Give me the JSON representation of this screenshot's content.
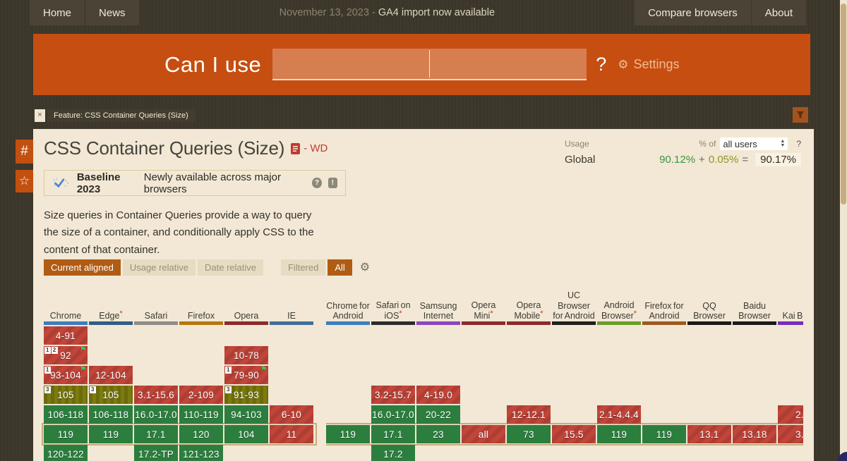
{
  "nav": {
    "left": [
      {
        "label": "Home"
      },
      {
        "label": "News"
      }
    ],
    "date_prefix": "November 13, 2023 - ",
    "announcement": "GA4 import now available",
    "right": [
      {
        "label": "Compare browsers"
      },
      {
        "label": "About"
      }
    ]
  },
  "header": {
    "logo": "Can I use",
    "question_mark": "?",
    "gear_icon": "⚙",
    "settings_label": "Settings",
    "accent_color": "#c54e10"
  },
  "feature_tag": {
    "close": "×",
    "label": "Feature: CSS Container Queries (Size)"
  },
  "side_buttons": {
    "hash": "#",
    "star": "☆"
  },
  "main": {
    "title": "CSS Container Queries (Size)",
    "spec_status": "- WD",
    "usage": {
      "label": "Usage",
      "percent_of": "% of",
      "audience": "all users",
      "help": "?",
      "region": "Global",
      "supported": "90.12%",
      "plus": "+",
      "partial": "0.05%",
      "equals": "=",
      "total": "90.17%"
    },
    "baseline": {
      "title": "Baseline 2023",
      "subtitle": "Newly available across major browsers",
      "help": "?",
      "feedback": "!"
    },
    "description": "Size queries in Container Queries provide a way to query the size of a container, and conditionally apply CSS to the content of that container.",
    "toolbar": {
      "modes": [
        {
          "label": "Current aligned",
          "active": true
        },
        {
          "label": "Usage relative",
          "active": false
        },
        {
          "label": "Date relative",
          "active": false
        }
      ],
      "filters": [
        {
          "label": "Filtered",
          "active": false
        },
        {
          "label": "All",
          "active": true
        }
      ],
      "gear_icon": "⚙"
    }
  },
  "support_colors": {
    "supported": "#2c7e3e",
    "unsupported": "#c2453a",
    "partial": "#7c7b0e"
  },
  "tables": [
    {
      "id": "desktop",
      "current_row": 5,
      "browsers": [
        {
          "label": "Chrome",
          "color": "#3b7dc1",
          "cells": [
            {
              "t": "4-91",
              "s": "u"
            },
            {
              "t": "92",
              "s": "u",
              "b": [
                "1",
                "2"
              ],
              "f": true
            },
            {
              "t": "93-104",
              "s": "u",
              "b": [
                "1"
              ],
              "f": true
            },
            {
              "t": "105",
              "s": "p",
              "b": [
                "3"
              ]
            },
            {
              "t": "106-118",
              "s": "y"
            },
            {
              "t": "119",
              "s": "y"
            },
            {
              "t": "120-122",
              "s": "y"
            }
          ]
        },
        {
          "label": "Edge",
          "asterisk": true,
          "color": "#2f5e88",
          "cells": [
            null,
            null,
            {
              "t": "12-104",
              "s": "u"
            },
            {
              "t": "105",
              "s": "p",
              "b": [
                "3"
              ]
            },
            {
              "t": "106-118",
              "s": "y"
            },
            {
              "t": "119",
              "s": "y"
            },
            null
          ]
        },
        {
          "label": "Safari",
          "color": "#8e8d89",
          "cells": [
            null,
            null,
            null,
            {
              "t": "3.1-15.6",
              "s": "u"
            },
            {
              "t": "16.0-17.0",
              "s": "y"
            },
            {
              "t": "17.1",
              "s": "y"
            },
            {
              "t": "17.2-TP",
              "s": "y"
            }
          ]
        },
        {
          "label": "Firefox",
          "color": "#b5770e",
          "cells": [
            null,
            null,
            null,
            {
              "t": "2-109",
              "s": "u"
            },
            {
              "t": "110-119",
              "s": "y"
            },
            {
              "t": "120",
              "s": "y"
            },
            {
              "t": "121-123",
              "s": "y"
            }
          ]
        },
        {
          "label": "Opera",
          "color": "#8d2a2a",
          "cells": [
            null,
            {
              "t": "10-78",
              "s": "u"
            },
            {
              "t": "79-90",
              "s": "u",
              "b": [
                "1"
              ],
              "f": true
            },
            {
              "t": "91-93",
              "s": "p",
              "b": [
                "3"
              ]
            },
            {
              "t": "94-103",
              "s": "y"
            },
            {
              "t": "104",
              "s": "y"
            },
            null
          ]
        },
        {
          "label": "IE",
          "color": "#41709a",
          "cells": [
            null,
            null,
            null,
            null,
            {
              "t": "6-10",
              "s": "u"
            },
            {
              "t": "11",
              "s": "u"
            },
            null
          ]
        }
      ]
    },
    {
      "id": "mobile",
      "current_row": 5,
      "browsers": [
        {
          "label": "Chrome for Android",
          "color": "#3b7dc1",
          "cells": [
            null,
            null,
            null,
            null,
            null,
            {
              "t": "119",
              "s": "y"
            },
            null
          ]
        },
        {
          "label": "Safari on iOS",
          "asterisk": true,
          "color": "#2c2c2c",
          "cells": [
            null,
            null,
            null,
            {
              "t": "3.2-15.7",
              "s": "u"
            },
            {
              "t": "16.0-17.0",
              "s": "y"
            },
            {
              "t": "17.1",
              "s": "y"
            },
            {
              "t": "17.2",
              "s": "y"
            }
          ]
        },
        {
          "label": "Samsung Internet",
          "color": "#8a46c3",
          "cells": [
            null,
            null,
            null,
            {
              "t": "4-19.0",
              "s": "u"
            },
            {
              "t": "20-22",
              "s": "y"
            },
            {
              "t": "23",
              "s": "y"
            },
            null
          ]
        },
        {
          "label": "Opera Mini",
          "asterisk": true,
          "color": "#8d2a2a",
          "cells": [
            null,
            null,
            null,
            null,
            null,
            {
              "t": "all",
              "s": "u"
            },
            null
          ]
        },
        {
          "label": "Opera Mobile",
          "asterisk": true,
          "color": "#8d2a2a",
          "cells": [
            null,
            null,
            null,
            null,
            {
              "t": "12-12.1",
              "s": "u"
            },
            {
              "t": "73",
              "s": "y"
            },
            null
          ]
        },
        {
          "label": "UC Browser for Android",
          "color": "#1f1f1f",
          "cells": [
            null,
            null,
            null,
            null,
            null,
            {
              "t": "15.5",
              "s": "u"
            },
            null
          ]
        },
        {
          "label": "Android Browser",
          "asterisk": true,
          "color": "#6b9c29",
          "cells": [
            null,
            null,
            null,
            null,
            {
              "t": "2.1-4.4.4",
              "s": "u"
            },
            {
              "t": "119",
              "s": "y"
            },
            null
          ]
        },
        {
          "label": "Firefox for Android",
          "color": "#9c5a1e",
          "cells": [
            null,
            null,
            null,
            null,
            null,
            {
              "t": "119",
              "s": "y"
            },
            null
          ]
        },
        {
          "label": "QQ Browser",
          "color": "#1a1a1a",
          "cells": [
            null,
            null,
            null,
            null,
            null,
            {
              "t": "13.1",
              "s": "u"
            },
            null
          ]
        },
        {
          "label": "Baidu Browser",
          "color": "#1a1a1a",
          "cells": [
            null,
            null,
            null,
            null,
            null,
            {
              "t": "13.18",
              "s": "u"
            },
            null
          ]
        },
        {
          "label": "Kai Brow",
          "color": "#7a2bbf",
          "cells": [
            null,
            null,
            null,
            null,
            {
              "t": "2.",
              "s": "u"
            },
            {
              "t": "3.",
              "s": "u"
            },
            null
          ]
        }
      ]
    }
  ]
}
